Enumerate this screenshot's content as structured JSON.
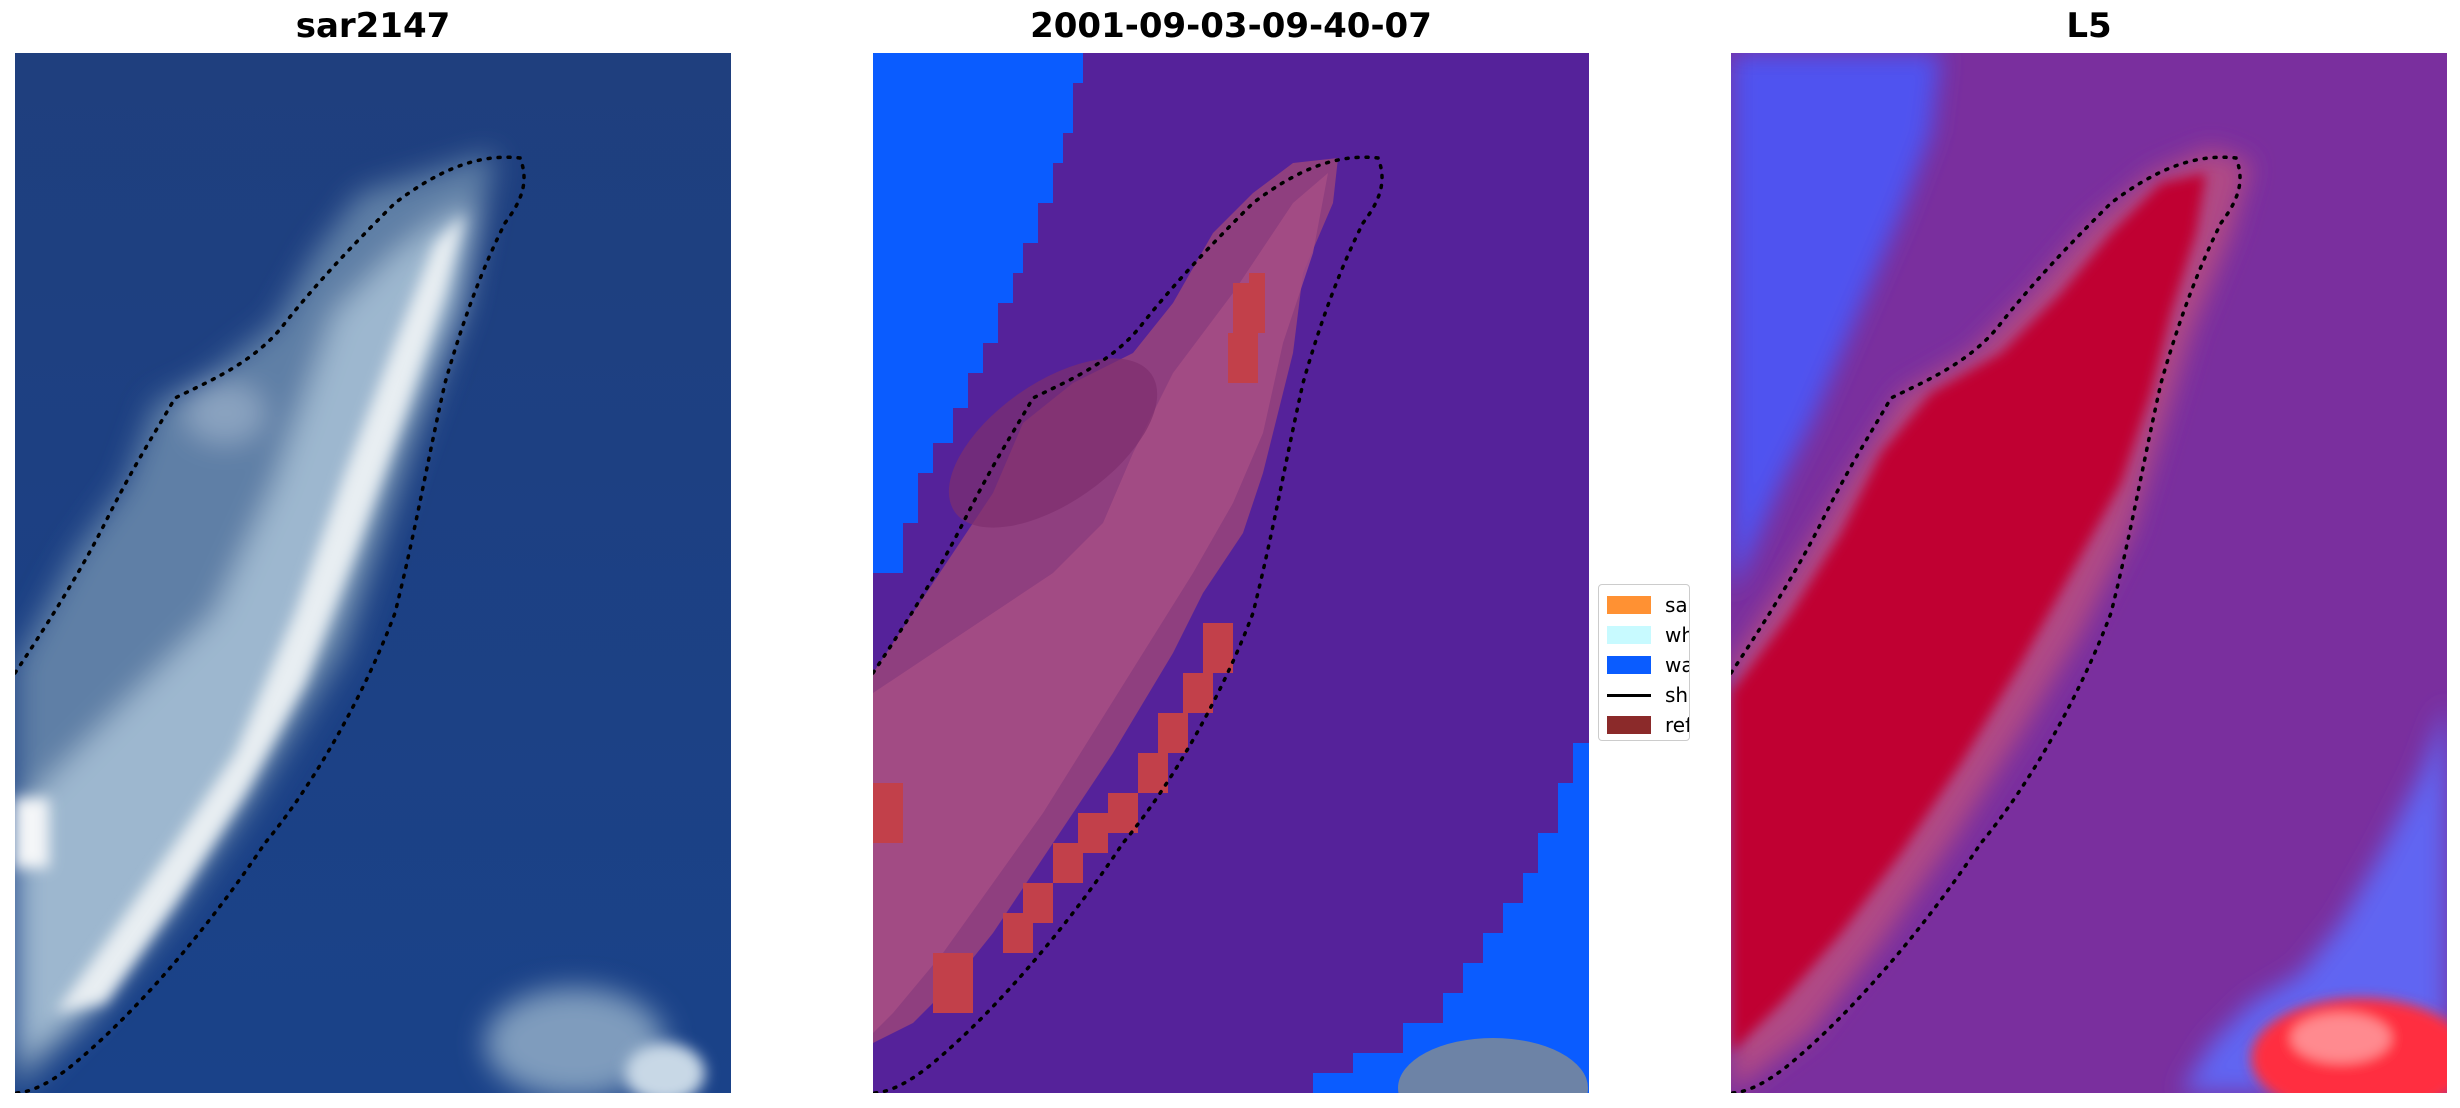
{
  "panels": [
    {
      "title": "sar2147"
    },
    {
      "title": "2001-09-03-09-40-07"
    },
    {
      "title": "L5"
    }
  ],
  "legend": {
    "items": [
      {
        "label": "sand",
        "color": "#ff9133",
        "kind": "patch"
      },
      {
        "label": "whitewater",
        "color": "#c8faff",
        "kind": "patch"
      },
      {
        "label": "water",
        "color": "#0a5cff",
        "kind": "patch"
      },
      {
        "label": "shoreline",
        "color": "#000000",
        "kind": "line"
      },
      {
        "label": "reference",
        "color": "#8b2a2a",
        "kind": "patch"
      }
    ]
  },
  "colors": {
    "ocean_rgb": "#1b3f80",
    "class_background": "#55229a",
    "class_water": "#0a5cff",
    "class_reference": "#c2404a",
    "index_low": "#6e2ea0",
    "index_high": "#c0002f",
    "index_water": "#3f46ff"
  }
}
